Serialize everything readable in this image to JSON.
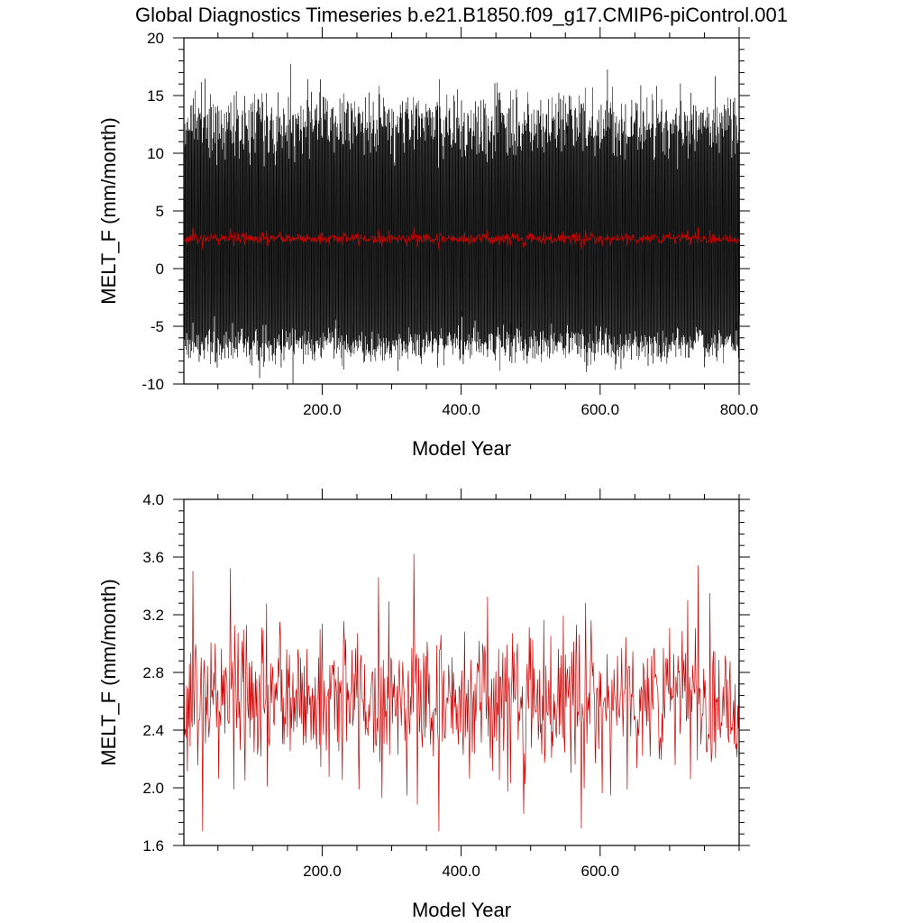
{
  "title": "Global Diagnostics Timeseries b.e21.B1850.f09_g17.CMIP6-piControl.001",
  "chart_data": [
    {
      "type": "line",
      "xlabel": "Model Year",
      "ylabel": "MELT_F (mm/month)",
      "xlim": [
        1,
        800
      ],
      "ylim": [
        -10,
        20
      ],
      "xticks": [
        200,
        400,
        600,
        800
      ],
      "xtick_labels": [
        "200.0",
        "400.0",
        "600.0",
        "800.0"
      ],
      "yticks": [
        -10,
        -5,
        0,
        5,
        10,
        15,
        20
      ],
      "ytick_labels": [
        "-10",
        "-5",
        "0",
        "5",
        "10",
        "15",
        "20"
      ],
      "series": [
        {
          "color": "#000000",
          "kind": "monthly",
          "period_months": 12,
          "annual_min_mean": -6.5,
          "annual_max_mean": 12.5,
          "min_range": [
            -8.7,
            -4.5
          ],
          "max_range": [
            9.5,
            16.7
          ],
          "n_points": 9600
        },
        {
          "color": "#cc0000",
          "kind": "annual-mean",
          "mean": 2.62,
          "range": [
            1.7,
            3.62
          ],
          "n_points": 800
        }
      ]
    },
    {
      "type": "line",
      "xlabel": "Model Year",
      "ylabel": "MELT_F (mm/month)",
      "xlim": [
        1,
        800
      ],
      "ylim": [
        1.6,
        4.0
      ],
      "xticks": [
        200,
        400,
        600
      ],
      "xtick_labels": [
        "200.0",
        "400.0",
        "600.0"
      ],
      "yticks": [
        1.6,
        2.0,
        2.4,
        2.8,
        3.2,
        3.6,
        4.0
      ],
      "ytick_labels": [
        "1.6",
        "2.0",
        "2.4",
        "2.8",
        "3.2",
        "3.6",
        "4.0"
      ],
      "series": [
        {
          "color": "#cc0000",
          "kind": "annual-mean",
          "mean": 2.62,
          "range": [
            1.7,
            3.62
          ],
          "n_points": 800
        }
      ]
    }
  ]
}
